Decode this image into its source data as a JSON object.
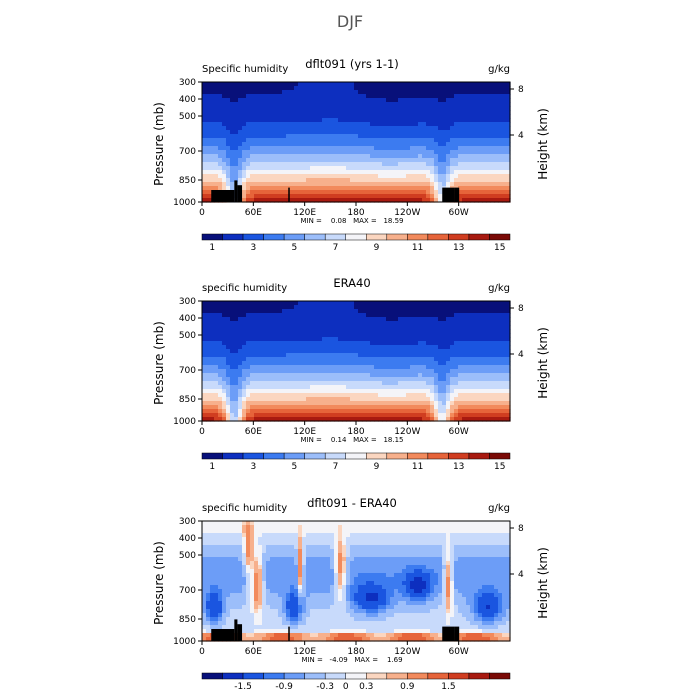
{
  "figure": {
    "title": "DJF"
  },
  "colors": {
    "diverging_scale": [
      "#08107a",
      "#0d2fbf",
      "#1a55e0",
      "#3c7bf0",
      "#6c9df7",
      "#9cbefa",
      "#c8dafb",
      "#f4f4f8",
      "#fbd6c0",
      "#f7b08c",
      "#f28a5c",
      "#e6643a",
      "#d03d20",
      "#a81a10",
      "#7a0a06"
    ],
    "land": "#000000"
  },
  "chart_data": [
    {
      "type": "heatmap",
      "id": "panel1",
      "title": "dflt091 (yrs 1-1)",
      "left_label": "Specific humidity",
      "right_label": "g/kg",
      "ylabel": "Pressure (mb)",
      "y2label": "Height (km)",
      "x_ticks": [
        "0",
        "60E",
        "120E",
        "180",
        "120W",
        "60W"
      ],
      "y_ticks": [
        "300",
        "400",
        "500",
        "700",
        "850",
        "1000"
      ],
      "y2_ticks": [
        "8",
        "4"
      ],
      "stats": "MIN =    0.08   MAX =   18.59",
      "colorbar_labels": [
        "1",
        "3",
        "5",
        "7",
        "9",
        "11",
        "13",
        "15"
      ],
      "field": "humidity",
      "show_land": true
    },
    {
      "type": "heatmap",
      "id": "panel2",
      "title": "ERA40",
      "left_label": "specific humidity",
      "right_label": "g/kg",
      "ylabel": "Pressure (mb)",
      "y2label": "Height (km)",
      "x_ticks": [
        "0",
        "60E",
        "120E",
        "180",
        "120W",
        "60W"
      ],
      "y_ticks": [
        "300",
        "400",
        "500",
        "700",
        "850",
        "1000"
      ],
      "y2_ticks": [
        "8",
        "4"
      ],
      "stats": "MIN =    0.14   MAX =   18.15",
      "colorbar_labels": [
        "1",
        "3",
        "5",
        "7",
        "9",
        "11",
        "13",
        "15"
      ],
      "field": "humidity",
      "show_land": false
    },
    {
      "type": "heatmap",
      "id": "panel3",
      "title": "dflt091 - ERA40",
      "left_label": "specific humidity",
      "right_label": "g/kg",
      "ylabel": "Pressure (mb)",
      "y2label": "Height (km)",
      "x_ticks": [
        "0",
        "60E",
        "120E",
        "180",
        "120W",
        "60W"
      ],
      "y_ticks": [
        "300",
        "400",
        "500",
        "700",
        "850",
        "1000"
      ],
      "y2_ticks": [
        "8",
        "4"
      ],
      "stats": "MIN =   -4.09   MAX =    1.69",
      "colorbar_labels": [
        "-1.5",
        "-0.9",
        "-0.3",
        "0",
        "0.3",
        "0.9",
        "1.5"
      ],
      "field": "difference",
      "show_land": true
    }
  ]
}
